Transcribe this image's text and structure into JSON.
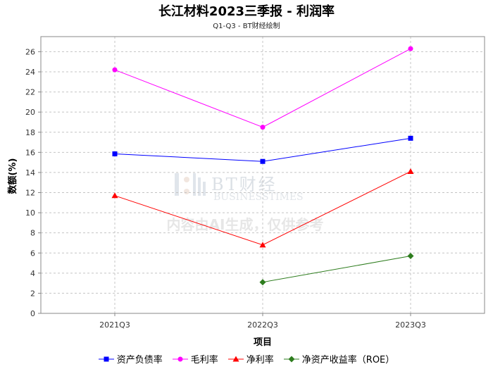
{
  "chart_data": {
    "type": "line",
    "title": "长江材料2023三季报 - 利润率",
    "subtitle": "Q1-Q3 - BT财经绘制",
    "xlabel": "项目",
    "ylabel": "数额(%)",
    "categories": [
      "2021Q3",
      "2022Q3",
      "2023Q3"
    ],
    "ylim": [
      0,
      27.5
    ],
    "yticks": [
      0,
      2,
      4,
      6,
      8,
      10,
      12,
      14,
      16,
      18,
      20,
      22,
      24,
      26
    ],
    "grid": true,
    "legend_position": "bottom",
    "watermark": {
      "brand": "BT财经",
      "brand_en": "BUSINESSTIMES",
      "notice": "内容由AI生成，仅供参考"
    },
    "series": [
      {
        "name": "资产负债率",
        "values": [
          15.85,
          15.1,
          17.4
        ],
        "color": "#0000ff",
        "marker": "square"
      },
      {
        "name": "毛利率",
        "values": [
          24.2,
          18.5,
          26.3
        ],
        "color": "#ff00ff",
        "marker": "circle"
      },
      {
        "name": "净利率",
        "values": [
          11.7,
          6.8,
          14.1
        ],
        "color": "#ff0000",
        "marker": "triangle"
      },
      {
        "name": "净资产收益率（ROE）",
        "values": [
          null,
          3.1,
          5.7
        ],
        "color": "#2e7d1e",
        "marker": "diamond"
      }
    ]
  }
}
